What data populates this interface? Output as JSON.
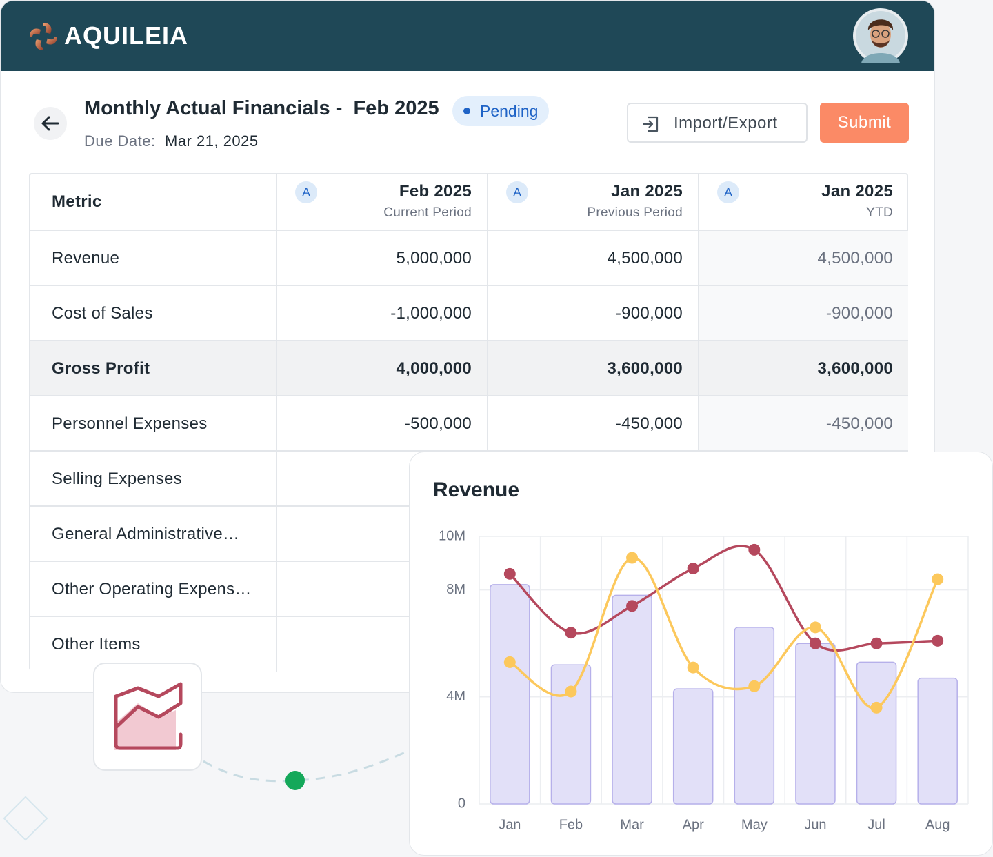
{
  "header": {
    "brand": "AQUILEIA"
  },
  "page": {
    "title": "Monthly Actual Financials -  Feb 2025",
    "status": "Pending",
    "due_label": "Due Date:",
    "due_date": "Mar 21, 2025",
    "actions": [
      "Import/Export",
      "Submit"
    ]
  },
  "table": {
    "columns": [
      {
        "label": "Metric"
      },
      {
        "badge": "A",
        "label": "Feb 2025",
        "sublabel": "Current Period"
      },
      {
        "badge": "A",
        "label": "Jan 2025",
        "sublabel": "Previous Period"
      },
      {
        "badge": "A",
        "label": "Jan 2025",
        "sublabel": "YTD"
      }
    ],
    "rows": [
      [
        "Revenue",
        "5,000,000",
        "4,500,000",
        "4,500,000"
      ],
      [
        "Cost of Sales",
        "-1,000,000",
        "-900,000",
        "-900,000"
      ],
      [
        "Gross Profit",
        "4,000,000",
        "3,600,000",
        "3,600,000"
      ],
      [
        "Personnel Expenses",
        "-500,000",
        "-450,000",
        "-450,000"
      ],
      [
        "Selling Expenses"
      ],
      [
        "General Administrative…"
      ],
      [
        "Other Operating Expens…"
      ],
      [
        "Other Items"
      ]
    ]
  },
  "chart_data": {
    "type": "bar",
    "title": "Revenue",
    "categories": [
      "Jan",
      "Feb",
      "Mar",
      "Apr",
      "May",
      "Jun",
      "Jul",
      "Aug"
    ],
    "series": [
      {
        "type": "bar",
        "color": "#e2e0f8",
        "values": [
          8200000,
          5200000,
          7800000,
          4300000,
          6600000,
          6000000,
          5300000,
          4700000
        ]
      },
      {
        "type": "line",
        "color": "#b5485d",
        "values": [
          8600000,
          6400000,
          7400000,
          8800000,
          9500000,
          6000000,
          6000000,
          6100000
        ]
      },
      {
        "type": "line",
        "color": "#fcc85c",
        "values": [
          5300000,
          4200000,
          9200000,
          5100000,
          4400000,
          6600000,
          3600000,
          8400000
        ]
      }
    ],
    "ylim": [
      0,
      10000000
    ],
    "yticks": [
      0,
      {
        "value": 4000000,
        "label": "4M"
      },
      {
        "value": 8000000,
        "label": "8M"
      },
      {
        "value": 10000000,
        "label": "10M"
      }
    ],
    "grid": true
  }
}
